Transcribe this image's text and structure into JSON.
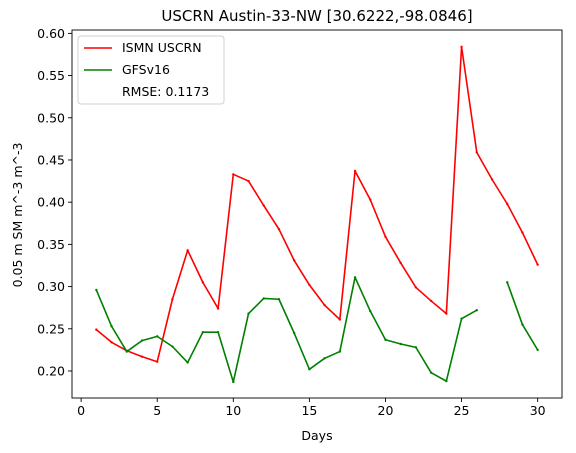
{
  "chart_data": {
    "type": "line",
    "title": "USCRN Austin-33-NW [30.6222,-98.0846]",
    "xlabel": "Days",
    "ylabel": "0.05 m SM m^-3 m^-3",
    "xlim": [
      -0.6,
      31.6
    ],
    "ylim": [
      0.168,
      0.604
    ],
    "xticks": [
      0,
      5,
      10,
      15,
      20,
      25,
      30
    ],
    "yticks": [
      0.2,
      0.25,
      0.3,
      0.35,
      0.4,
      0.45,
      0.5,
      0.55,
      0.6
    ],
    "grid": false,
    "legend_position": "upper-left",
    "legend_note": "RMSE: 0.1173",
    "series": [
      {
        "name": "ISMN USCRN",
        "color": "#ff0000",
        "x": [
          1,
          2,
          3,
          4,
          5,
          6,
          7,
          8,
          9,
          10,
          11,
          12,
          13,
          14,
          15,
          16,
          17,
          18,
          19,
          20,
          21,
          22,
          23,
          24,
          25,
          26,
          27,
          28,
          29,
          30
        ],
        "y": [
          0.249,
          0.234,
          0.224,
          0.217,
          0.211,
          0.285,
          0.343,
          0.305,
          0.274,
          0.433,
          0.425,
          0.396,
          0.368,
          0.331,
          0.302,
          0.278,
          0.261,
          0.437,
          0.403,
          0.359,
          0.328,
          0.299,
          0.283,
          0.268,
          0.584,
          0.459,
          0.427,
          0.398,
          0.364,
          0.326
        ]
      },
      {
        "name": "GFSv16",
        "color": "#008000",
        "x": [
          1,
          2,
          3,
          4,
          5,
          6,
          7,
          8,
          9,
          10,
          11,
          12,
          13,
          14,
          15,
          16,
          17,
          18,
          19,
          20,
          21,
          22,
          23,
          24,
          25,
          26,
          27,
          28,
          29,
          30
        ],
        "y": [
          0.296,
          0.253,
          0.223,
          0.236,
          0.241,
          0.229,
          0.21,
          0.246,
          0.246,
          0.187,
          0.268,
          0.286,
          0.285,
          0.245,
          0.202,
          0.215,
          0.223,
          0.311,
          0.271,
          0.237,
          0.232,
          0.228,
          0.198,
          0.188,
          0.262,
          0.272,
          null,
          0.305,
          0.255,
          0.225
        ]
      }
    ]
  }
}
